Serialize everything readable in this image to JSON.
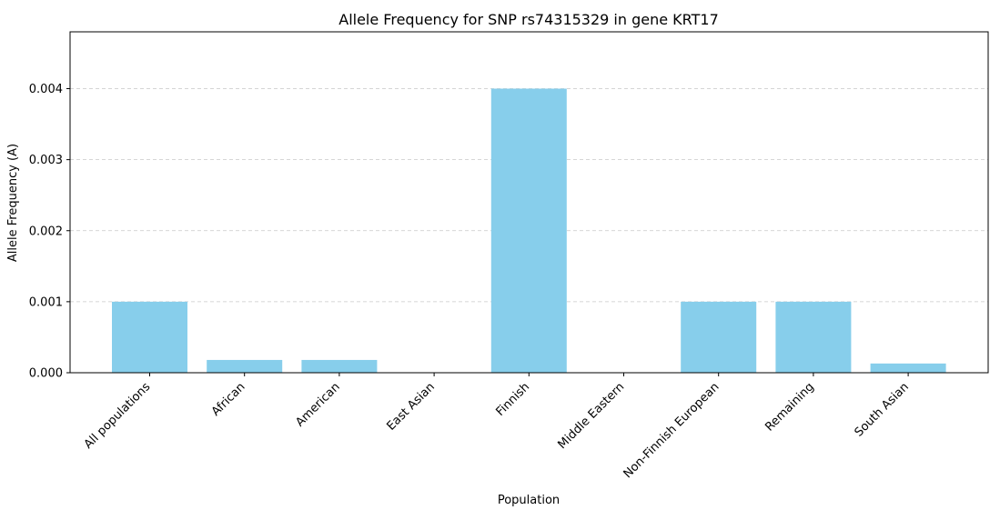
{
  "chart_data": {
    "type": "bar",
    "title": "Allele Frequency for SNP rs74315329 in gene KRT17",
    "xlabel": "Population",
    "ylabel": "Allele Frequency (A)",
    "categories": [
      "All populations",
      "African",
      "American",
      "East Asian",
      "Finnish",
      "Middle Eastern",
      "Non-Finnish European",
      "Remaining",
      "South Asian"
    ],
    "values": [
      0.001,
      0.00018,
      0.00018,
      0.0,
      0.004,
      0.0,
      0.001,
      0.001,
      0.00013
    ],
    "ylim": [
      0,
      0.0048
    ],
    "yticks": [
      "0.000",
      "0.001",
      "0.002",
      "0.003",
      "0.004"
    ],
    "grid": "y-dashed",
    "bar_color": "#87ceeb"
  }
}
